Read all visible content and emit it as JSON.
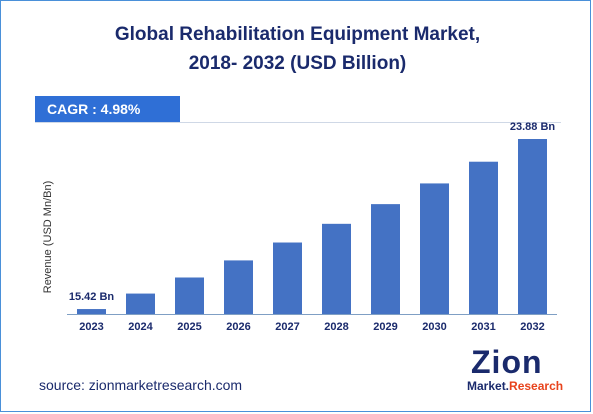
{
  "header": {
    "title_line1": "Global Rehabilitation Equipment Market,",
    "title_line2": "2018- 2032 (USD Billion)"
  },
  "cagr_badge": "CAGR :  4.98%",
  "source": "source: zionmarketresearch.com",
  "logo": {
    "main": "Zion",
    "sub_left": "Market.",
    "sub_right": "Research"
  },
  "colors": {
    "bar": "#4472c4",
    "title": "#1a2a6c",
    "badge": "#2f6fd6",
    "axis": "#7f9fc4"
  },
  "chart_data": {
    "type": "bar",
    "title": "Global Rehabilitation Equipment Market, 2018- 2032 (USD Billion)",
    "ylabel": "Revenue (USD Mn/Bn)",
    "xlabel": "",
    "categories": [
      "2023",
      "2024",
      "2025",
      "2026",
      "2027",
      "2028",
      "2029",
      "2030",
      "2031",
      "2032"
    ],
    "values": [
      15.42,
      16.19,
      16.99,
      17.84,
      18.73,
      19.66,
      20.64,
      21.67,
      22.75,
      23.88
    ],
    "data_labels": [
      {
        "index": 0,
        "text": "15.42 Bn"
      },
      {
        "index": 9,
        "text": "23.88 Bn"
      }
    ],
    "grid": false,
    "legend": "none"
  }
}
